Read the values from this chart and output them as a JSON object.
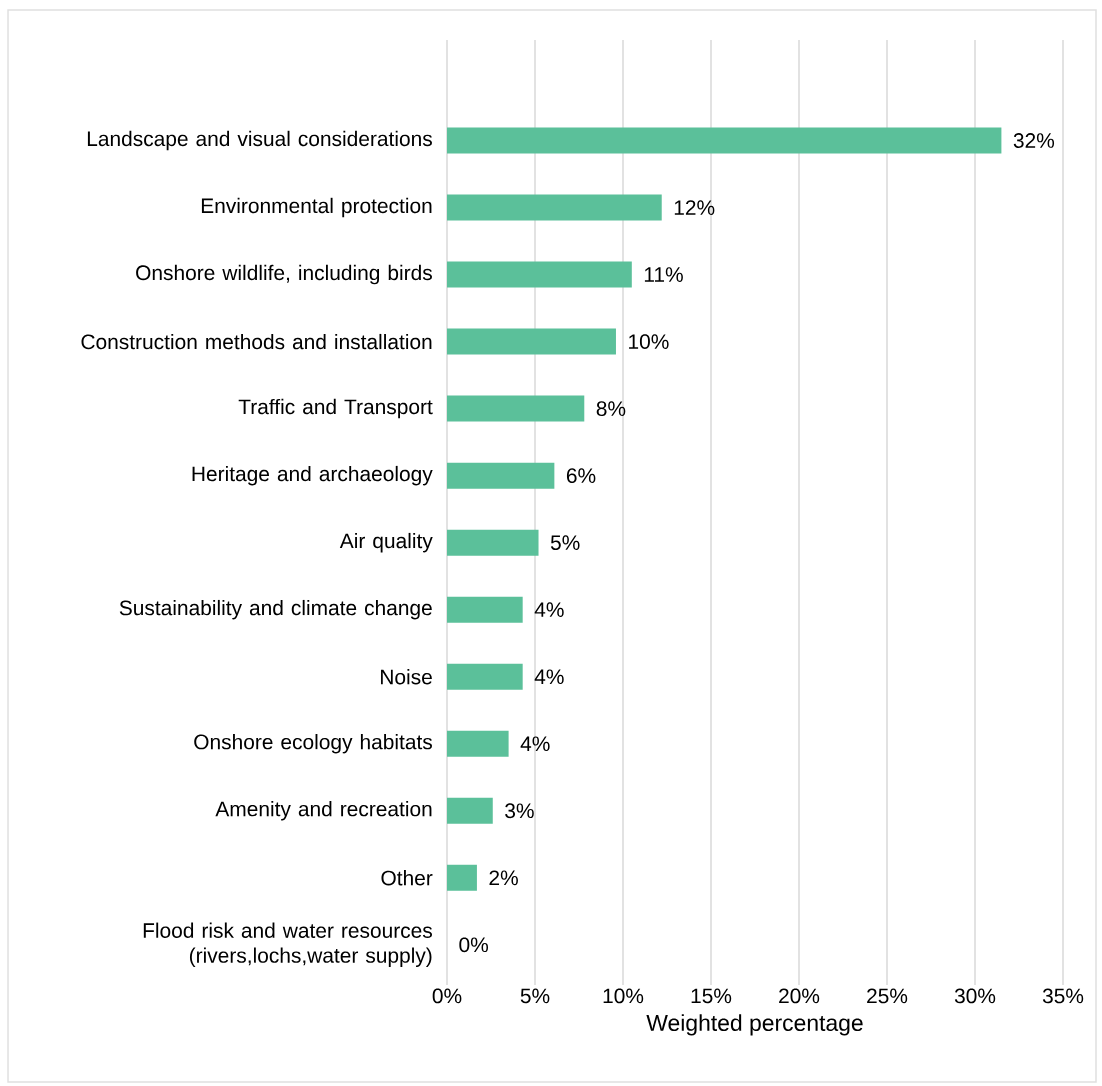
{
  "chart_data": {
    "type": "bar",
    "orientation": "horizontal",
    "xlabel": "Weighted percentage",
    "categories": [
      "Landscape and visual considerations",
      "Environmental protection",
      "Onshore wildlife, including birds",
      "Construction methods and installation",
      "Traffic and Transport",
      "Heritage and archaeology",
      "Air quality",
      "Sustainability and climate change",
      "Noise",
      "Onshore ecology habitats",
      "Amenity and recreation",
      "Other",
      "Flood risk and water resources (rivers,lochs,water supply)"
    ],
    "values": [
      31.5,
      12.2,
      10.5,
      9.6,
      7.8,
      6.1,
      5.2,
      4.3,
      4.3,
      3.5,
      2.6,
      1.7,
      0
    ],
    "value_labels": [
      "32%",
      "12%",
      "11%",
      "10%",
      "8%",
      "6%",
      "5%",
      "4%",
      "4%",
      "4%",
      "3%",
      "2%",
      "0%"
    ],
    "color": "#5bc09a",
    "xlim": [
      0,
      35
    ],
    "xticks": [
      {
        "value": 0,
        "label": "0%"
      },
      {
        "value": 5,
        "label": "5%"
      },
      {
        "value": 10,
        "label": "10%"
      },
      {
        "value": 15,
        "label": "15%"
      },
      {
        "value": 20,
        "label": "20%"
      },
      {
        "value": 25,
        "label": "25%"
      },
      {
        "value": 30,
        "label": "30%"
      },
      {
        "value": 35,
        "label": "35%"
      }
    ],
    "grid": "x"
  }
}
